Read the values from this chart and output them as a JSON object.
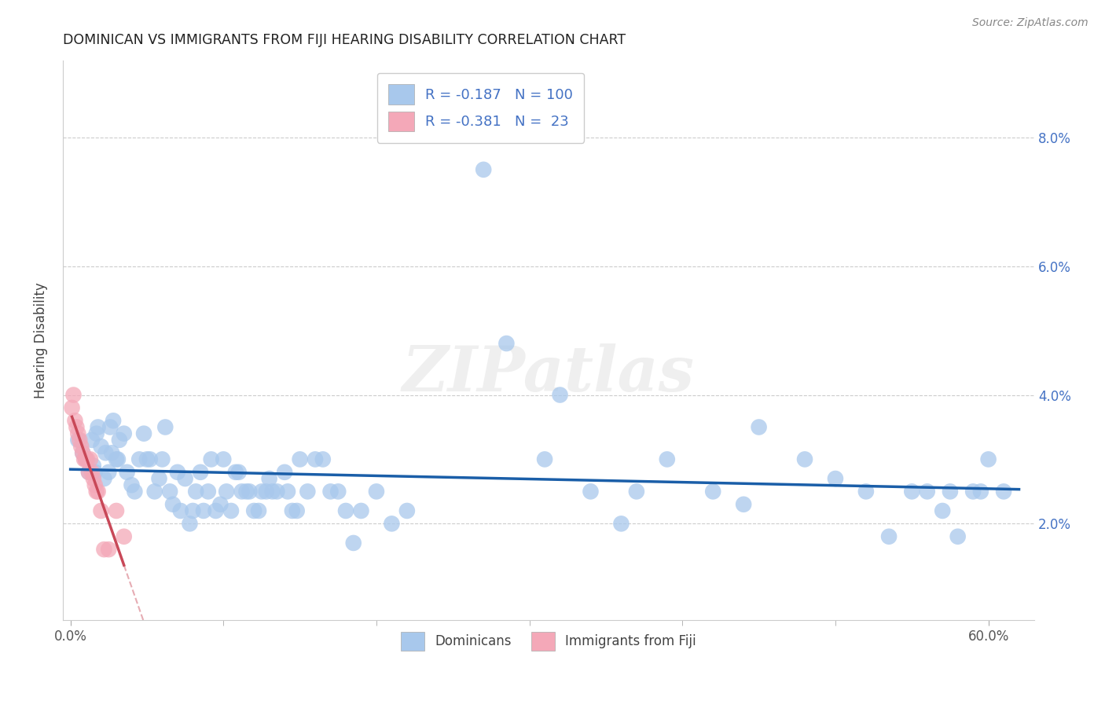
{
  "title": "DOMINICAN VS IMMIGRANTS FROM FIJI HEARING DISABILITY CORRELATION CHART",
  "source": "Source: ZipAtlas.com",
  "ylabel_label": "Hearing Disability",
  "x_tick_labels": [
    "0.0%",
    "60.0%"
  ],
  "x_tick_vals": [
    0.0,
    0.6
  ],
  "y_tick_labels": [
    "2.0%",
    "4.0%",
    "6.0%",
    "8.0%"
  ],
  "y_tick_vals": [
    0.02,
    0.04,
    0.06,
    0.08
  ],
  "xlim": [
    -0.005,
    0.63
  ],
  "ylim": [
    0.005,
    0.092
  ],
  "blue_R": "-0.187",
  "blue_N": "100",
  "pink_R": "-0.381",
  "pink_N": " 23",
  "blue_color": "#A8C8EC",
  "pink_color": "#F4A8B8",
  "blue_line_color": "#1A5EA8",
  "pink_line_color": "#C84858",
  "blue_label": "Dominicans",
  "pink_label": "Immigrants from Fiji",
  "legend_text_color": "#4472C4",
  "watermark": "ZIPatlas",
  "blue_x": [
    0.005,
    0.008,
    0.01,
    0.012,
    0.014,
    0.015,
    0.016,
    0.017,
    0.018,
    0.02,
    0.022,
    0.023,
    0.025,
    0.026,
    0.027,
    0.028,
    0.03,
    0.031,
    0.032,
    0.035,
    0.037,
    0.04,
    0.042,
    0.045,
    0.048,
    0.05,
    0.052,
    0.055,
    0.058,
    0.06,
    0.062,
    0.065,
    0.067,
    0.07,
    0.072,
    0.075,
    0.078,
    0.08,
    0.082,
    0.085,
    0.087,
    0.09,
    0.092,
    0.095,
    0.098,
    0.1,
    0.102,
    0.105,
    0.108,
    0.11,
    0.112,
    0.115,
    0.117,
    0.12,
    0.123,
    0.125,
    0.128,
    0.13,
    0.132,
    0.135,
    0.14,
    0.142,
    0.145,
    0.148,
    0.15,
    0.155,
    0.16,
    0.165,
    0.17,
    0.175,
    0.18,
    0.185,
    0.19,
    0.2,
    0.21,
    0.22,
    0.27,
    0.285,
    0.31,
    0.32,
    0.34,
    0.36,
    0.37,
    0.39,
    0.42,
    0.44,
    0.45,
    0.48,
    0.5,
    0.52,
    0.535,
    0.55,
    0.56,
    0.57,
    0.575,
    0.58,
    0.59,
    0.595,
    0.6,
    0.61
  ],
  "blue_y": [
    0.033,
    0.031,
    0.03,
    0.028,
    0.033,
    0.029,
    0.028,
    0.034,
    0.035,
    0.032,
    0.027,
    0.031,
    0.028,
    0.035,
    0.031,
    0.036,
    0.03,
    0.03,
    0.033,
    0.034,
    0.028,
    0.026,
    0.025,
    0.03,
    0.034,
    0.03,
    0.03,
    0.025,
    0.027,
    0.03,
    0.035,
    0.025,
    0.023,
    0.028,
    0.022,
    0.027,
    0.02,
    0.022,
    0.025,
    0.028,
    0.022,
    0.025,
    0.03,
    0.022,
    0.023,
    0.03,
    0.025,
    0.022,
    0.028,
    0.028,
    0.025,
    0.025,
    0.025,
    0.022,
    0.022,
    0.025,
    0.025,
    0.027,
    0.025,
    0.025,
    0.028,
    0.025,
    0.022,
    0.022,
    0.03,
    0.025,
    0.03,
    0.03,
    0.025,
    0.025,
    0.022,
    0.017,
    0.022,
    0.025,
    0.02,
    0.022,
    0.075,
    0.048,
    0.03,
    0.04,
    0.025,
    0.02,
    0.025,
    0.03,
    0.025,
    0.023,
    0.035,
    0.03,
    0.027,
    0.025,
    0.018,
    0.025,
    0.025,
    0.022,
    0.025,
    0.018,
    0.025,
    0.025,
    0.03,
    0.025
  ],
  "pink_x": [
    0.001,
    0.002,
    0.003,
    0.004,
    0.005,
    0.006,
    0.007,
    0.008,
    0.009,
    0.01,
    0.011,
    0.012,
    0.013,
    0.014,
    0.015,
    0.016,
    0.017,
    0.018,
    0.02,
    0.022,
    0.025,
    0.03,
    0.035
  ],
  "pink_y": [
    0.038,
    0.04,
    0.036,
    0.035,
    0.034,
    0.033,
    0.032,
    0.031,
    0.03,
    0.03,
    0.03,
    0.028,
    0.03,
    0.028,
    0.027,
    0.026,
    0.025,
    0.025,
    0.022,
    0.016,
    0.016,
    0.022,
    0.018
  ]
}
